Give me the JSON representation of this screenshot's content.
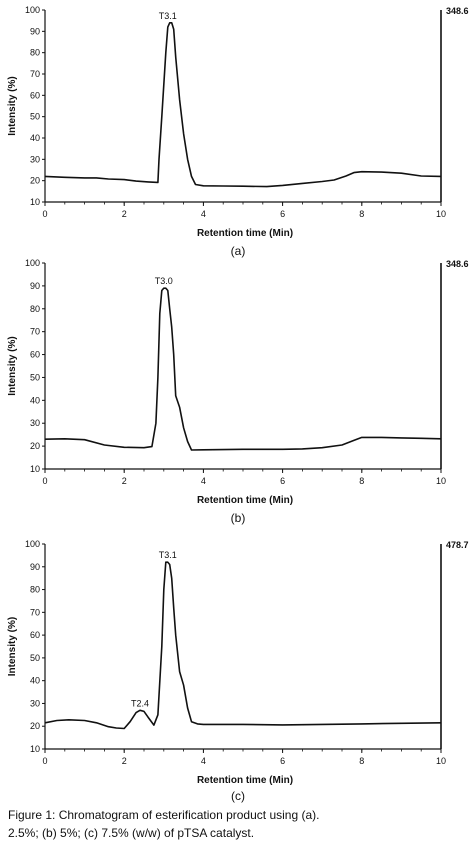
{
  "chart_data": [
    {
      "type": "line",
      "panel_label": "(a)",
      "xlabel": "Retention time (Min)",
      "ylabel": "Intensity (%)",
      "xlim": [
        0,
        10
      ],
      "ylim": [
        10,
        100
      ],
      "x_ticks": [
        "0",
        "2",
        "4",
        "6",
        "8",
        "10"
      ],
      "y_ticks": [
        "10",
        "20",
        "30",
        "40",
        "50",
        "60",
        "70",
        "80",
        "90",
        "100"
      ],
      "right_label": "348.6",
      "grid": false,
      "peaks": [
        {
          "label": "T3.1",
          "x": 3.1,
          "y": 94
        }
      ],
      "series": [
        {
          "x": [
            0,
            0.5,
            1.0,
            1.3,
            1.6,
            2.0,
            2.3,
            2.6,
            2.85,
            2.88,
            2.95,
            3.0,
            3.05,
            3.1,
            3.15,
            3.2,
            3.25,
            3.3,
            3.4,
            3.5,
            3.6,
            3.7,
            3.8,
            4.0,
            4.5,
            5.0,
            5.6,
            6.0,
            6.5,
            7.0,
            7.3,
            7.6,
            7.8,
            8.0,
            8.5,
            9.0,
            9.5,
            10.0
          ],
          "y": [
            22,
            21.6,
            21.3,
            21.3,
            20.8,
            20.5,
            19.8,
            19.4,
            19.2,
            30,
            50,
            65,
            80,
            92,
            94,
            94,
            91,
            78,
            58,
            42,
            30,
            22,
            18.2,
            17.6,
            17.5,
            17.4,
            17.2,
            17.8,
            18.7,
            19.6,
            20.3,
            22.2,
            23.8,
            24.2,
            24.0,
            23.5,
            22.2,
            22.0
          ]
        }
      ]
    },
    {
      "type": "line",
      "panel_label": "(b)",
      "xlabel": "Retention time (Min)",
      "ylabel": "Intensity (%)",
      "xlim": [
        0,
        10
      ],
      "ylim": [
        10,
        100
      ],
      "x_ticks": [
        "0",
        "2",
        "4",
        "6",
        "8",
        "10"
      ],
      "y_ticks": [
        "10",
        "20",
        "30",
        "40",
        "50",
        "60",
        "70",
        "80",
        "90",
        "100"
      ],
      "right_label": "348.6",
      "grid": false,
      "peaks": [
        {
          "label": "T3.0",
          "x": 3.0,
          "y": 89
        }
      ],
      "series": [
        {
          "x": [
            0,
            0.5,
            1.0,
            1.5,
            2.0,
            2.5,
            2.7,
            2.8,
            2.85,
            2.9,
            2.95,
            3.0,
            3.05,
            3.1,
            3.15,
            3.2,
            3.25,
            3.3,
            3.4,
            3.5,
            3.6,
            3.7,
            4.0,
            5.0,
            6.0,
            6.5,
            7.0,
            7.5,
            7.8,
            8.0,
            8.5,
            9.0,
            9.5,
            10.0
          ],
          "y": [
            23,
            23.2,
            22.8,
            20.5,
            19.5,
            19.3,
            19.8,
            30,
            50,
            78,
            88,
            89,
            89,
            88,
            80,
            72,
            60,
            42,
            37,
            28,
            22,
            18.3,
            18.4,
            18.6,
            18.6,
            18.8,
            19.3,
            20.5,
            22.5,
            23.8,
            23.8,
            23.6,
            23.4,
            23.2
          ]
        }
      ]
    },
    {
      "type": "line",
      "panel_label": "(c)",
      "xlabel": "Retention time (Min)",
      "ylabel": "Intensity (%)",
      "xlim": [
        0,
        10
      ],
      "ylim": [
        10,
        100
      ],
      "x_ticks": [
        "0",
        "2",
        "4",
        "6",
        "8",
        "10"
      ],
      "y_ticks": [
        "10",
        "20",
        "30",
        "40",
        "50",
        "60",
        "70",
        "80",
        "90",
        "100"
      ],
      "right_label": "478.7",
      "grid": false,
      "peaks": [
        {
          "label": "T2.4",
          "x": 2.4,
          "y": 27
        },
        {
          "label": "T3.1",
          "x": 3.1,
          "y": 92
        }
      ],
      "series": [
        {
          "x": [
            0,
            0.3,
            0.6,
            1.0,
            1.3,
            1.6,
            1.8,
            2.0,
            2.15,
            2.3,
            2.4,
            2.5,
            2.6,
            2.75,
            2.85,
            2.95,
            3.0,
            3.05,
            3.1,
            3.15,
            3.2,
            3.25,
            3.3,
            3.4,
            3.5,
            3.6,
            3.7,
            3.85,
            4.0,
            5.0,
            6.0,
            7.0,
            8.0,
            9.0,
            10.0
          ],
          "y": [
            21.5,
            22.5,
            22.8,
            22.5,
            21.5,
            19.8,
            19.2,
            19.0,
            22,
            26,
            27,
            26.5,
            24,
            20.5,
            25,
            55,
            80,
            92,
            92,
            91,
            85,
            72,
            60,
            44,
            38,
            28,
            22,
            21.0,
            20.8,
            20.8,
            20.6,
            20.8,
            21.0,
            21.3,
            21.5
          ]
        }
      ]
    }
  ],
  "caption": {
    "line1": "Figure 1: Chromatogram of esterification product using (a).",
    "line2": "2.5%; (b) 5%; (c) 7.5% (w/w) of pTSA catalyst."
  }
}
